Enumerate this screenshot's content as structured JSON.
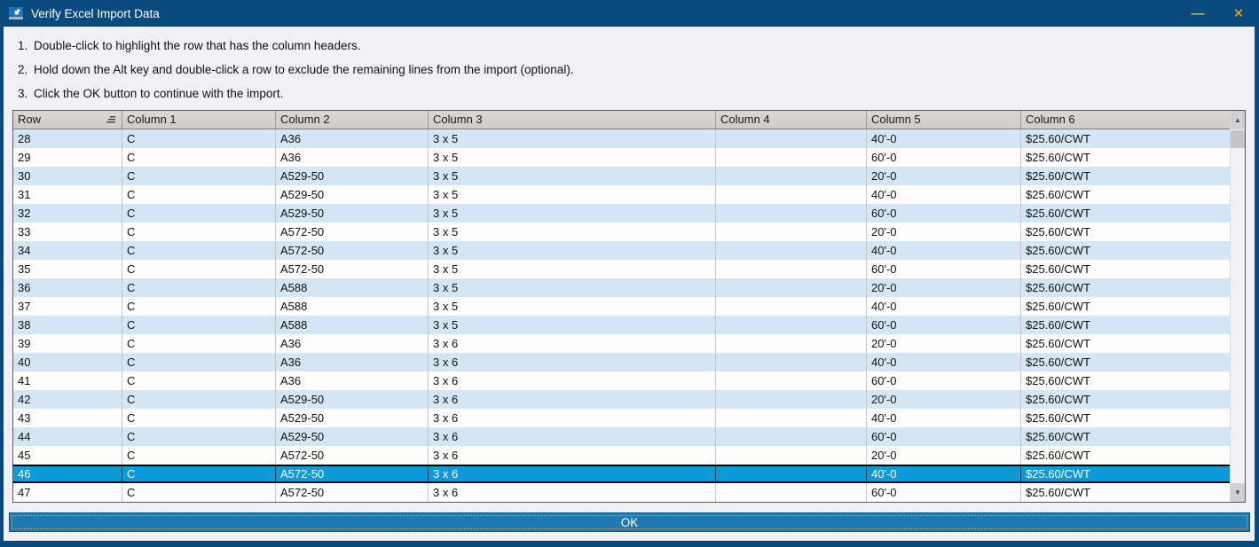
{
  "window": {
    "title": "Verify Excel Import Data"
  },
  "titlebar": {
    "minimize_glyph": "—",
    "close_glyph": "✕"
  },
  "instructions": [
    {
      "num": "1.",
      "text": "Double-click to highlight the row that has the column headers."
    },
    {
      "num": "2.",
      "text": "Hold down the Alt key and double-click a row to exclude the remaining lines from the import (optional)."
    },
    {
      "num": "3.",
      "text": "Click the OK button to continue with the import."
    }
  ],
  "table": {
    "columns": [
      "Row",
      "Column 1",
      "Column 2",
      "Column 3",
      "Column 4",
      "Column 5",
      "Column 6"
    ],
    "selected_row": "46",
    "rows": [
      {
        "cells": [
          "28",
          "C",
          "A36",
          "3 x 5",
          "",
          "40'-0",
          "$25.60/CWT"
        ],
        "selected": false
      },
      {
        "cells": [
          "29",
          "C",
          "A36",
          "3 x 5",
          "",
          "60'-0",
          "$25.60/CWT"
        ],
        "selected": false
      },
      {
        "cells": [
          "30",
          "C",
          "A529-50",
          "3 x 5",
          "",
          "20'-0",
          "$25.60/CWT"
        ],
        "selected": false
      },
      {
        "cells": [
          "31",
          "C",
          "A529-50",
          "3 x 5",
          "",
          "40'-0",
          "$25.60/CWT"
        ],
        "selected": false
      },
      {
        "cells": [
          "32",
          "C",
          "A529-50",
          "3 x 5",
          "",
          "60'-0",
          "$25.60/CWT"
        ],
        "selected": false
      },
      {
        "cells": [
          "33",
          "C",
          "A572-50",
          "3 x 5",
          "",
          "20'-0",
          "$25.60/CWT"
        ],
        "selected": false
      },
      {
        "cells": [
          "34",
          "C",
          "A572-50",
          "3 x 5",
          "",
          "40'-0",
          "$25.60/CWT"
        ],
        "selected": false
      },
      {
        "cells": [
          "35",
          "C",
          "A572-50",
          "3 x 5",
          "",
          "60'-0",
          "$25.60/CWT"
        ],
        "selected": false
      },
      {
        "cells": [
          "36",
          "C",
          "A588",
          "3 x 5",
          "",
          "20'-0",
          "$25.60/CWT"
        ],
        "selected": false
      },
      {
        "cells": [
          "37",
          "C",
          "A588",
          "3 x 5",
          "",
          "40'-0",
          "$25.60/CWT"
        ],
        "selected": false
      },
      {
        "cells": [
          "38",
          "C",
          "A588",
          "3 x 5",
          "",
          "60'-0",
          "$25.60/CWT"
        ],
        "selected": false
      },
      {
        "cells": [
          "39",
          "C",
          "A36",
          "3 x 6",
          "",
          "20'-0",
          "$25.60/CWT"
        ],
        "selected": false
      },
      {
        "cells": [
          "40",
          "C",
          "A36",
          "3 x 6",
          "",
          "40'-0",
          "$25.60/CWT"
        ],
        "selected": false
      },
      {
        "cells": [
          "41",
          "C",
          "A36",
          "3 x 6",
          "",
          "60'-0",
          "$25.60/CWT"
        ],
        "selected": false
      },
      {
        "cells": [
          "42",
          "C",
          "A529-50",
          "3 x 6",
          "",
          "20'-0",
          "$25.60/CWT"
        ],
        "selected": false
      },
      {
        "cells": [
          "43",
          "C",
          "A529-50",
          "3 x 6",
          "",
          "40'-0",
          "$25.60/CWT"
        ],
        "selected": false
      },
      {
        "cells": [
          "44",
          "C",
          "A529-50",
          "3 x 6",
          "",
          "60'-0",
          "$25.60/CWT"
        ],
        "selected": false
      },
      {
        "cells": [
          "45",
          "C",
          "A572-50",
          "3 x 6",
          "",
          "20'-0",
          "$25.60/CWT"
        ],
        "selected": false
      },
      {
        "cells": [
          "46",
          "C",
          "A572-50",
          "3 x 6",
          "",
          "40'-0",
          "$25.60/CWT"
        ],
        "selected": true
      },
      {
        "cells": [
          "47",
          "C",
          "A572-50",
          "3 x 6",
          "",
          "60'-0",
          "$25.60/CWT"
        ],
        "selected": false
      }
    ]
  },
  "footer": {
    "ok_label": "OK"
  },
  "colors": {
    "titlebar": "#0b4a7d",
    "accent-gold": "#edb211",
    "bg": "#f1f1f5",
    "row-alt": "#d4e6f3",
    "row-white": "#fdfdfe",
    "sel": "#0c9ad8",
    "ok": "#1e7ab3",
    "header-bg": "#d6d3cc"
  }
}
